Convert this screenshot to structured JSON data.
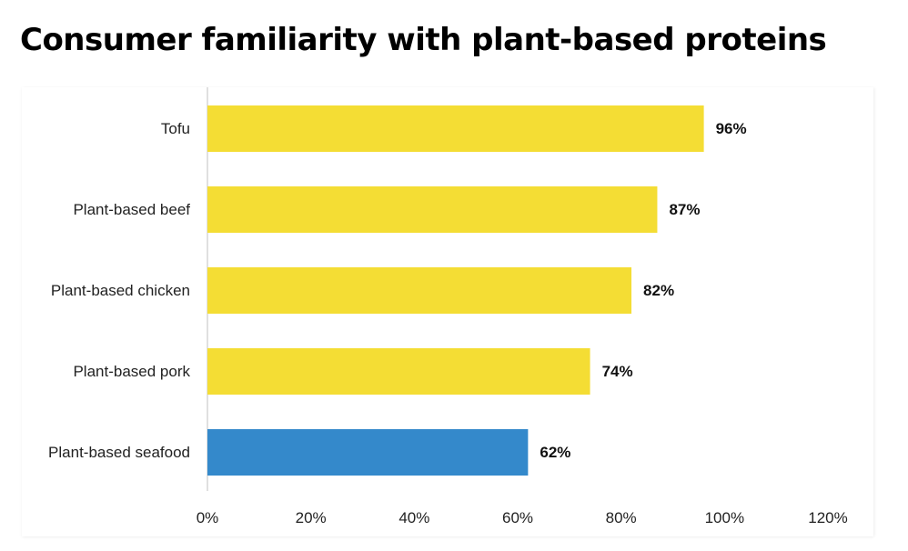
{
  "title": "Consumer familiarity with plant-based proteins",
  "colors": {
    "default_bar": "#F4DD34",
    "highlight_bar": "#3489CB",
    "axis_line": "#D6D6D6"
  },
  "chart_data": {
    "type": "bar",
    "orientation": "horizontal",
    "title": "Consumer familiarity with plant-based proteins",
    "xlabel": "",
    "ylabel": "",
    "categories": [
      "Tofu",
      "Plant-based beef",
      "Plant-based chicken",
      "Plant-based pork",
      "Plant-based seafood"
    ],
    "values": [
      96,
      87,
      82,
      74,
      62
    ],
    "value_labels": [
      "96%",
      "87%",
      "82%",
      "74%",
      "62%"
    ],
    "highlight": [
      false,
      false,
      false,
      false,
      true
    ],
    "xlim": [
      0,
      120
    ],
    "x_ticks": [
      0,
      20,
      40,
      60,
      80,
      100,
      120
    ],
    "x_tick_labels": [
      "0%",
      "20%",
      "40%",
      "60%",
      "80%",
      "100%",
      "120%"
    ],
    "grid": false,
    "legend": "none"
  }
}
